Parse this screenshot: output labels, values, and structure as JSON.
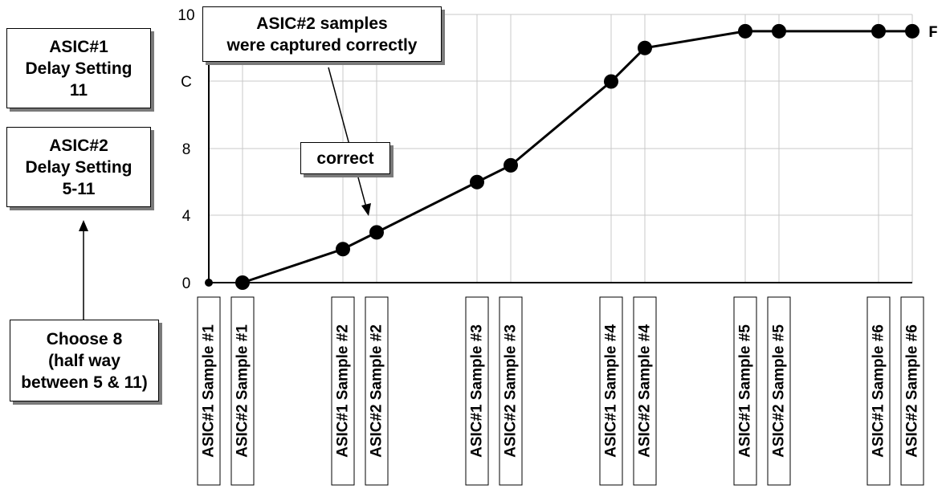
{
  "notes": {
    "asic1": [
      "ASIC#1",
      "Delay Setting",
      "11"
    ],
    "asic2": [
      "ASIC#2",
      "Delay Setting",
      "5-11"
    ],
    "choose": [
      "Choose 8",
      "(half way",
      "between 5 & 11)"
    ],
    "captured": [
      "ASIC#2 samples",
      "were captured correctly"
    ],
    "correct": [
      "correct"
    ]
  },
  "chart_data": {
    "type": "line",
    "y_ticks": [
      "0",
      "4",
      "8",
      "C",
      "10"
    ],
    "y_end_label": "F",
    "categories": [
      "ASIC#1 Sample #1",
      "ASIC#2 Sample #1",
      "ASIC#1 Sample #2",
      "ASIC#2 Sample #2",
      "ASIC#1 Sample #3",
      "ASIC#2 Sample #3",
      "ASIC#1 Sample #4",
      "ASIC#2 Sample #4",
      "ASIC#1 Sample #5",
      "ASIC#2 Sample #5",
      "ASIC#1 Sample #6",
      "ASIC#2 Sample #6"
    ],
    "values": [
      0,
      0,
      2,
      3,
      6,
      7,
      12,
      14,
      15,
      15,
      15,
      15
    ],
    "ylim": [
      0,
      16
    ],
    "grid": true,
    "colors": {
      "line": "#000000",
      "grid": "#c8c8c8",
      "shadow": "#7a7a7a"
    }
  }
}
